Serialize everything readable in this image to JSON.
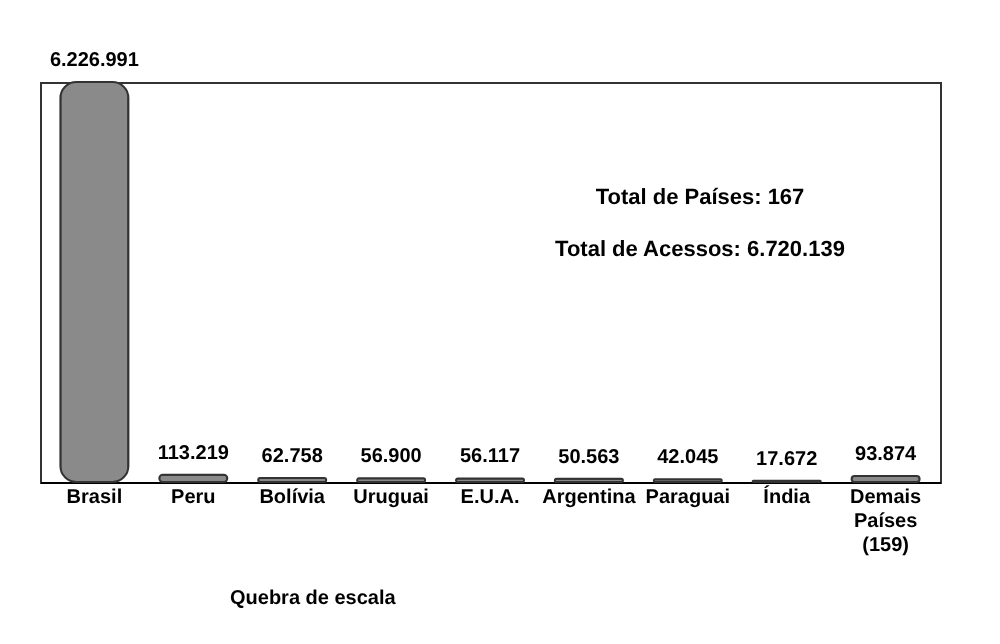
{
  "chart_data": {
    "type": "bar",
    "categories": [
      "Brasil",
      "Peru",
      "Bolívia",
      "Uruguai",
      "E.U.A.",
      "Argentina",
      "Paraguai",
      "Índia",
      "Demais Países (159)"
    ],
    "values": [
      6226991,
      113219,
      62758,
      56900,
      56117,
      50563,
      42045,
      17672,
      93874
    ],
    "value_labels": [
      "6.226.991",
      "113.219",
      "62.758",
      "56.900",
      "56.117",
      "50.563",
      "42.045",
      "17.672",
      "93.874"
    ],
    "color": "#8a8a8a",
    "annotations": [
      "Total de Países: 167",
      "Total de Acessos: 6.720.139",
      "Quebra de escala"
    ],
    "grid": false
  }
}
